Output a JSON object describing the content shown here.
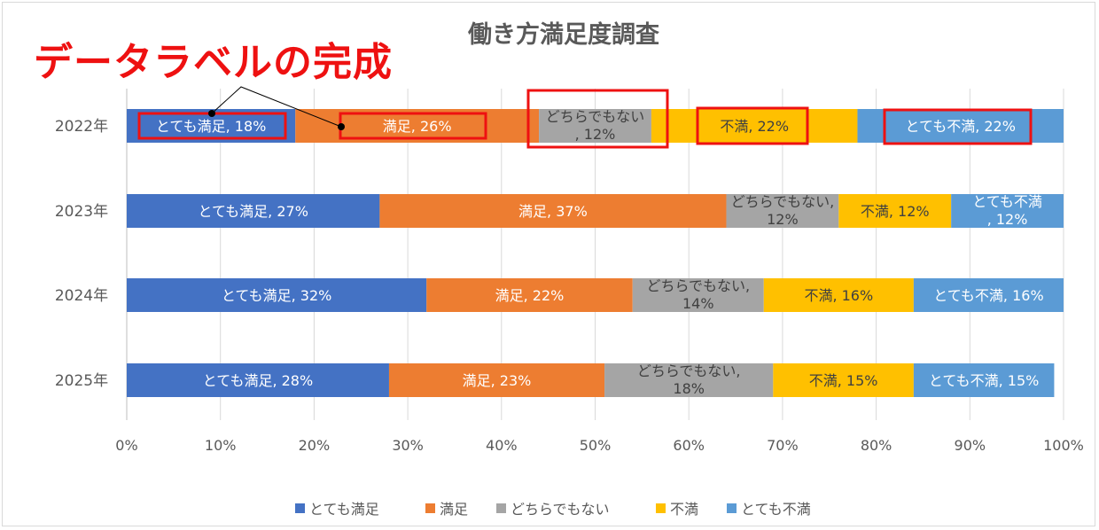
{
  "overlay": {
    "text": "データラベルの完成"
  },
  "chart_data": {
    "type": "bar",
    "orientation": "horizontal",
    "stacked": "percent",
    "title": "働き方満足度調査",
    "categories": [
      "2022年",
      "2023年",
      "2024年",
      "2025年"
    ],
    "series": [
      {
        "name": "とても満足",
        "values": [
          18,
          27,
          32,
          28
        ]
      },
      {
        "name": "満足",
        "values": [
          26,
          37,
          22,
          23
        ]
      },
      {
        "name": "どちらでもない",
        "values": [
          12,
          12,
          14,
          18
        ]
      },
      {
        "name": "不満",
        "values": [
          22,
          12,
          16,
          15
        ]
      },
      {
        "name": "とても不満",
        "values": [
          22,
          12,
          16,
          15
        ]
      }
    ],
    "xlim": [
      0,
      100
    ],
    "x_ticks": [
      "0%",
      "10%",
      "20%",
      "30%",
      "40%",
      "50%",
      "60%",
      "70%",
      "80%",
      "90%",
      "100%"
    ],
    "data_labels": [
      [
        [
          "とても満足, 18%"
        ],
        [
          "満足, 26%"
        ],
        [
          "どちらでもない",
          ", 12%"
        ],
        [
          "不満, 22%"
        ],
        [
          "とても不満, 22%"
        ]
      ],
      [
        [
          "とても満足, 27%"
        ],
        [
          "満足, 37%"
        ],
        [
          "どちらでもない,",
          "12%"
        ],
        [
          "不満, 12%"
        ],
        [
          "とても不満",
          ", 12%"
        ]
      ],
      [
        [
          "とても満足, 32%"
        ],
        [
          "満足, 22%"
        ],
        [
          "どちらでもない,",
          "14%"
        ],
        [
          "不満, 16%"
        ],
        [
          "とても不満, 16%"
        ]
      ],
      [
        [
          "とても満足, 28%"
        ],
        [
          "満足, 23%"
        ],
        [
          "どちらでもない,",
          "18%"
        ],
        [
          "不満, 15%"
        ],
        [
          "とても不満, 15%"
        ]
      ]
    ],
    "colors": [
      "#4472c4",
      "#ed7d31",
      "#a5a5a5",
      "#ffc000",
      "#5b9bd5"
    ],
    "label_colors": [
      "#ffffff",
      "#ffffff",
      "#404040",
      "#404040",
      "#ffffff"
    ],
    "grid": true,
    "legend_position": "bottom",
    "highlight_color": "#ee1111"
  }
}
